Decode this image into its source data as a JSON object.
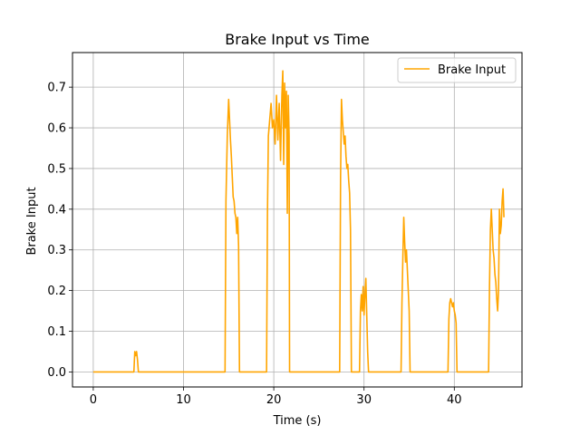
{
  "chart_data": {
    "type": "line",
    "title": "Brake Input vs Time",
    "xlabel": "Time (s)",
    "ylabel": "Brake Input",
    "xlim": [
      -2.3,
      47.5
    ],
    "ylim": [
      -0.037,
      0.785
    ],
    "xticks": [
      0,
      10,
      20,
      30,
      40
    ],
    "yticks": [
      0.0,
      0.1,
      0.2,
      0.3,
      0.4,
      0.5,
      0.6,
      0.7
    ],
    "grid": true,
    "legend_position": "top-right",
    "series": [
      {
        "name": "Brake Input",
        "color": "#ffa500",
        "x": [
          0,
          4.5,
          4.6,
          4.7,
          4.8,
          4.9,
          5.0,
          14.6,
          14.7,
          14.85,
          15.0,
          15.1,
          15.2,
          15.3,
          15.4,
          15.5,
          15.6,
          15.7,
          15.8,
          15.9,
          16.0,
          16.1,
          16.2,
          19.2,
          19.3,
          19.4,
          19.55,
          19.7,
          19.85,
          20.0,
          20.15,
          20.3,
          20.45,
          20.6,
          20.75,
          20.9,
          21.0,
          21.1,
          21.2,
          21.3,
          21.4,
          21.5,
          21.6,
          21.7,
          21.75,
          27.3,
          27.4,
          27.5,
          27.6,
          27.7,
          27.8,
          27.9,
          28.0,
          28.1,
          28.2,
          28.3,
          28.4,
          28.5,
          28.6,
          29.5,
          29.6,
          29.7,
          29.8,
          29.9,
          30.0,
          30.1,
          30.2,
          30.3,
          30.4,
          30.5,
          34.1,
          34.2,
          34.3,
          34.4,
          34.5,
          34.6,
          34.7,
          34.8,
          34.9,
          35.0,
          35.1,
          39.3,
          39.4,
          39.5,
          39.6,
          39.7,
          39.8,
          39.9,
          40.0,
          40.1,
          40.2,
          40.3,
          43.8,
          43.9,
          44.0,
          44.1,
          44.2,
          44.3,
          44.4,
          44.5,
          44.6,
          44.7,
          44.8,
          44.9,
          45.0,
          45.1,
          45.2,
          45.3,
          45.4,
          45.5
        ],
        "y": [
          0,
          0,
          0.05,
          0.04,
          0.05,
          0.03,
          0,
          0,
          0.42,
          0.58,
          0.67,
          0.62,
          0.57,
          0.53,
          0.48,
          0.43,
          0.42,
          0.39,
          0.38,
          0.34,
          0.38,
          0.31,
          0,
          0,
          0.39,
          0.58,
          0.62,
          0.66,
          0.6,
          0.62,
          0.56,
          0.68,
          0.57,
          0.66,
          0.52,
          0.68,
          0.74,
          0.51,
          0.71,
          0.6,
          0.69,
          0.39,
          0.68,
          0.58,
          0,
          0,
          0.48,
          0.67,
          0.62,
          0.59,
          0.56,
          0.58,
          0.53,
          0.5,
          0.51,
          0.47,
          0.44,
          0.35,
          0,
          0,
          0.15,
          0.19,
          0.15,
          0.21,
          0.14,
          0.19,
          0.23,
          0.14,
          0.05,
          0,
          0,
          0.17,
          0.28,
          0.38,
          0.32,
          0.27,
          0.3,
          0.25,
          0.2,
          0.15,
          0,
          0,
          0.13,
          0.17,
          0.18,
          0.17,
          0.16,
          0.17,
          0.15,
          0.14,
          0.12,
          0,
          0,
          0.21,
          0.35,
          0.4,
          0.35,
          0.3,
          0.28,
          0.24,
          0.22,
          0.18,
          0.15,
          0.2,
          0.4,
          0.34,
          0.36,
          0.42,
          0.45,
          0.38
        ]
      }
    ]
  }
}
